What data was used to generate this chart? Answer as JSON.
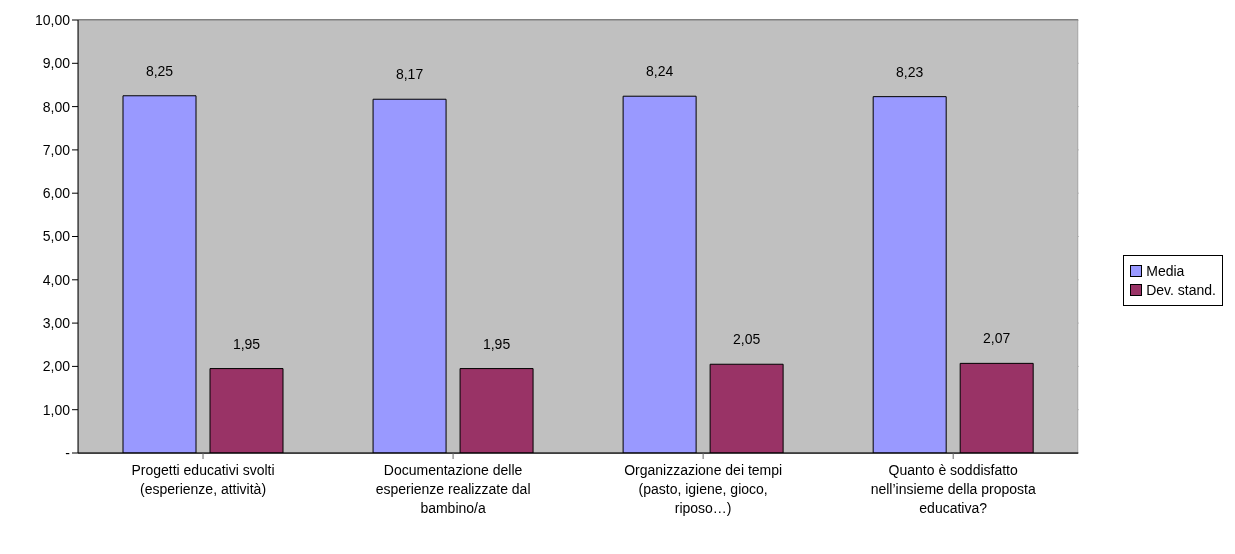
{
  "chart_data": {
    "type": "bar",
    "categories": [
      "Progetti educativi svolti (esperienze, attività)",
      "Documentazione delle esperienze realizzate dal bambino/a",
      "Organizzazione dei tempi (pasto, igiene, gioco, riposo…)",
      "Quanto è soddisfatto nell’insieme della proposta educativa?"
    ],
    "series": [
      {
        "name": "Media",
        "color": "#9999ff",
        "values": [
          8.25,
          8.17,
          8.24,
          8.23
        ],
        "value_labels": [
          "8,25",
          "8,17",
          "8,24",
          "8,23"
        ]
      },
      {
        "name": "Dev. stand.",
        "color": "#993366",
        "values": [
          1.95,
          1.95,
          2.05,
          2.07
        ],
        "value_labels": [
          "1,95",
          "1,95",
          "2,05",
          "2,07"
        ]
      }
    ],
    "ylim": [
      0,
      10
    ],
    "yticks": [
      {
        "value": 0,
        "label": "-"
      },
      {
        "value": 1,
        "label": "1,00"
      },
      {
        "value": 2,
        "label": "2,00"
      },
      {
        "value": 3,
        "label": "3,00"
      },
      {
        "value": 4,
        "label": "4,00"
      },
      {
        "value": 5,
        "label": "5,00"
      },
      {
        "value": 6,
        "label": "6,00"
      },
      {
        "value": 7,
        "label": "7,00"
      },
      {
        "value": 8,
        "label": "8,00"
      },
      {
        "value": 9,
        "label": "9,00"
      },
      {
        "value": 10,
        "label": "10,00"
      }
    ],
    "grid": "y",
    "legend": "right"
  }
}
